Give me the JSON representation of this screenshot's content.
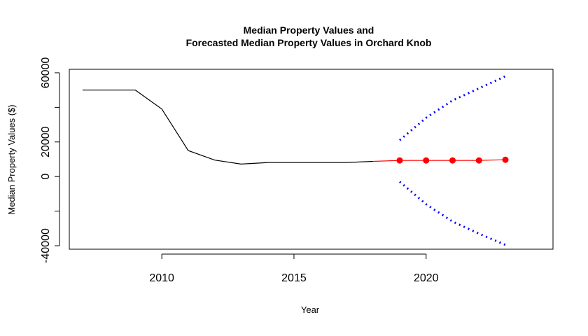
{
  "chart_data": {
    "type": "line",
    "title": [
      "Median Property Values and",
      "Forecasted Median Property Values in Orchard Knob"
    ],
    "xlabel": "Year",
    "ylabel": "Median Property Values ($)",
    "xlim": [
      2006.5,
      2024.8
    ],
    "ylim": [
      -42000,
      62000
    ],
    "xticks": [
      2010,
      2015,
      2020
    ],
    "xtick_labels": [
      "2010",
      "2015",
      "2020"
    ],
    "yticks": [
      -40000,
      0,
      20000,
      60000
    ],
    "ytick_labels": [
      "-40000",
      "0",
      "20000",
      "60000"
    ],
    "ytick_marks": [
      -40000,
      -20000,
      0,
      20000,
      40000,
      60000
    ],
    "grid": false,
    "legend": "none",
    "series": [
      {
        "style": "line",
        "color": "#000000",
        "x": [
          2007,
          2008,
          2009,
          2010,
          2011,
          2012,
          2013,
          2014,
          2015,
          2016,
          2017,
          2018
        ],
        "y": [
          50000,
          50000,
          50000,
          39000,
          15000,
          9500,
          7200,
          8100,
          8100,
          8100,
          8100,
          8800
        ]
      },
      {
        "style": "line-points",
        "color": "#ff0000",
        "x": [
          2018,
          2019,
          2020,
          2021,
          2022,
          2023
        ],
        "y": [
          8800,
          9300,
          9300,
          9300,
          9300,
          9700
        ]
      },
      {
        "style": "dotted",
        "color": "#0000ff",
        "x": [
          2019,
          2020,
          2021,
          2022,
          2023
        ],
        "y": [
          21000,
          34000,
          44000,
          51000,
          58000
        ]
      },
      {
        "style": "dotted",
        "color": "#0000ff",
        "x": [
          2019,
          2020,
          2021,
          2022,
          2023
        ],
        "y": [
          -3000,
          -16000,
          -26000,
          -33000,
          -39500
        ]
      }
    ]
  }
}
